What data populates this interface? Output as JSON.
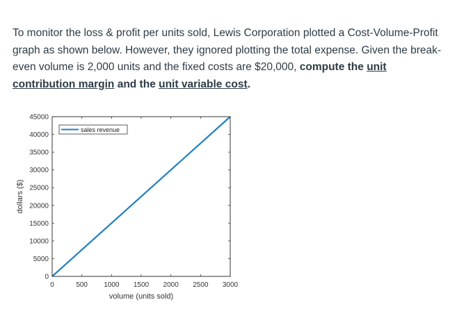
{
  "question": {
    "part1": "To monitor the loss & profit per units sold, Lewis Corporation plotted a Cost-Volume-Profit graph as shown below.  However, they ignored plotting the total expense.  Given the break-even volume is 2,000 units and the fixed costs are $20,000, ",
    "bold_prefix": "compute the ",
    "bold_term1": "unit contribution margin",
    "bold_mid": " and the ",
    "bold_term2": "unit variable cost",
    "bold_suffix": "."
  },
  "chart_data": {
    "type": "line",
    "xlabel": "volume (units sold)",
    "ylabel": "dollars ($)",
    "xlim": [
      0,
      3000
    ],
    "ylim": [
      0,
      45000
    ],
    "xticks": [
      0,
      500,
      1000,
      1500,
      2000,
      2500,
      3000
    ],
    "yticks": [
      0,
      5000,
      10000,
      15000,
      20000,
      25000,
      30000,
      35000,
      40000,
      45000
    ],
    "grid": false,
    "legend_position": "top-left",
    "series": [
      {
        "name": "sales revenue",
        "color": "#1f7fc4",
        "x": [
          0,
          3000
        ],
        "y": [
          0,
          45000
        ]
      }
    ]
  }
}
